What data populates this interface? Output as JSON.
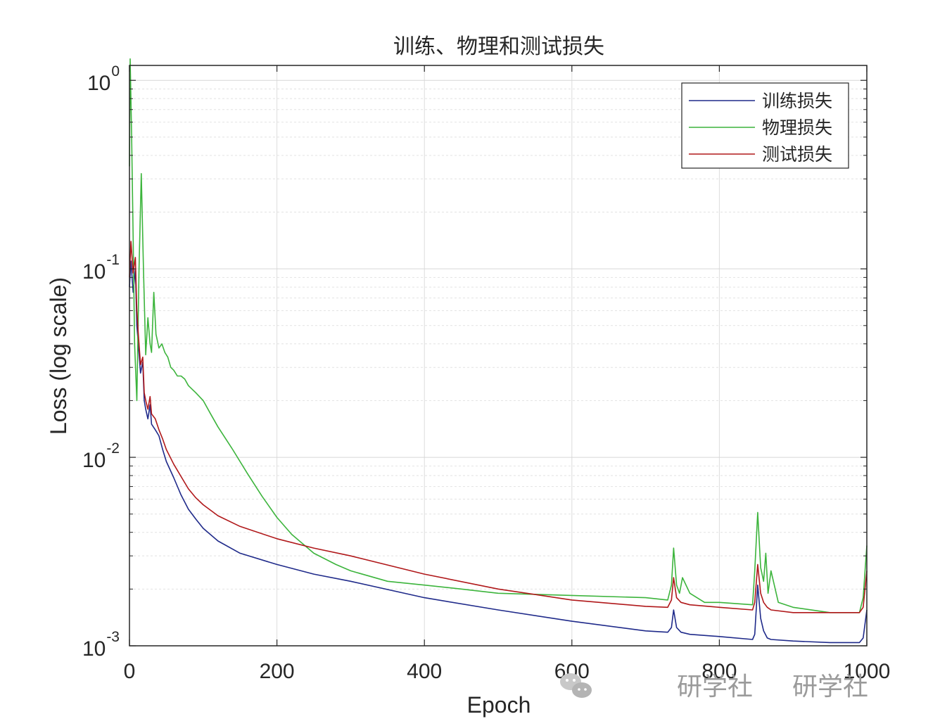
{
  "chart_data": {
    "type": "line",
    "title": "训练、物理和测试损失",
    "xlabel": "Epoch",
    "ylabel": "Loss (log scale)",
    "xlim": [
      0,
      1000
    ],
    "ylim": [
      0.001,
      1.2
    ],
    "yscale": "log",
    "grid": true,
    "minor_grid": true,
    "legend": "top-right",
    "xticks": [
      "0",
      "200",
      "400",
      "600",
      "800",
      "1000"
    ],
    "yticks": [
      {
        "base": "10",
        "exp": "0",
        "value": 1
      },
      {
        "base": "10",
        "exp": "-1",
        "value": 0.1
      },
      {
        "base": "10",
        "exp": "-2",
        "value": 0.01
      },
      {
        "base": "10",
        "exp": "-3",
        "value": 0.001
      }
    ],
    "series": [
      {
        "name": "训练损失",
        "color": "#1f2a8a",
        "x": [
          0,
          2,
          5,
          8,
          10,
          12,
          15,
          18,
          20,
          22,
          25,
          28,
          30,
          35,
          40,
          45,
          50,
          60,
          70,
          80,
          90,
          100,
          120,
          150,
          200,
          250,
          300,
          400,
          500,
          600,
          700,
          730,
          735,
          738,
          742,
          748,
          760,
          800,
          845,
          848,
          852,
          856,
          860,
          865,
          870,
          900,
          950,
          990,
          995,
          1000
        ],
        "y": [
          0.08,
          0.11,
          0.075,
          0.1,
          0.05,
          0.04,
          0.028,
          0.032,
          0.02,
          0.018,
          0.016,
          0.019,
          0.015,
          0.014,
          0.013,
          0.011,
          0.0095,
          0.0078,
          0.0063,
          0.0053,
          0.0047,
          0.0042,
          0.0036,
          0.0031,
          0.0027,
          0.0024,
          0.0022,
          0.0018,
          0.00155,
          0.00135,
          0.0012,
          0.00118,
          0.00125,
          0.00155,
          0.00125,
          0.00118,
          0.00115,
          0.00112,
          0.00108,
          0.00115,
          0.0021,
          0.0014,
          0.0012,
          0.0011,
          0.00108,
          0.00106,
          0.00104,
          0.00104,
          0.0011,
          0.00155
        ]
      },
      {
        "name": "物理损失",
        "color": "#3cb43c",
        "x": [
          0,
          1,
          3,
          5,
          7,
          10,
          13,
          16,
          19,
          22,
          25,
          28,
          30,
          33,
          36,
          40,
          44,
          48,
          52,
          56,
          60,
          65,
          70,
          75,
          80,
          90,
          100,
          110,
          120,
          140,
          160,
          180,
          200,
          220,
          250,
          280,
          300,
          350,
          400,
          450,
          500,
          600,
          700,
          730,
          735,
          738,
          742,
          746,
          750,
          760,
          780,
          800,
          845,
          848,
          852,
          856,
          860,
          863,
          866,
          870,
          880,
          900,
          950,
          990,
          995,
          1000
        ],
        "y": [
          0.35,
          1.3,
          0.5,
          0.15,
          0.04,
          0.02,
          0.1,
          0.32,
          0.1,
          0.035,
          0.055,
          0.04,
          0.036,
          0.075,
          0.045,
          0.038,
          0.04,
          0.036,
          0.034,
          0.03,
          0.029,
          0.027,
          0.027,
          0.026,
          0.024,
          0.022,
          0.02,
          0.017,
          0.0145,
          0.011,
          0.0082,
          0.0062,
          0.0048,
          0.0039,
          0.0031,
          0.0027,
          0.0025,
          0.0022,
          0.0021,
          0.002,
          0.0019,
          0.00185,
          0.0018,
          0.00175,
          0.0021,
          0.0033,
          0.0021,
          0.0019,
          0.0023,
          0.0019,
          0.0017,
          0.0017,
          0.00165,
          0.0025,
          0.0051,
          0.0026,
          0.0022,
          0.0031,
          0.0019,
          0.0025,
          0.0017,
          0.0016,
          0.0015,
          0.0015,
          0.0018,
          0.0034
        ]
      },
      {
        "name": "测试损失",
        "color": "#b0181a",
        "x": [
          0,
          2,
          5,
          8,
          10,
          12,
          15,
          18,
          20,
          22,
          25,
          28,
          30,
          35,
          40,
          45,
          50,
          60,
          70,
          80,
          90,
          100,
          120,
          150,
          200,
          250,
          300,
          400,
          500,
          600,
          700,
          730,
          735,
          738,
          742,
          748,
          760,
          800,
          845,
          848,
          852,
          856,
          860,
          865,
          870,
          900,
          950,
          990,
          995,
          1000
        ],
        "y": [
          0.09,
          0.14,
          0.095,
          0.115,
          0.06,
          0.045,
          0.031,
          0.034,
          0.022,
          0.02,
          0.018,
          0.021,
          0.017,
          0.016,
          0.014,
          0.0125,
          0.011,
          0.0092,
          0.0079,
          0.0068,
          0.0061,
          0.0056,
          0.0049,
          0.0043,
          0.0037,
          0.0033,
          0.003,
          0.0024,
          0.002,
          0.00175,
          0.00162,
          0.0016,
          0.00175,
          0.0023,
          0.0018,
          0.0017,
          0.00165,
          0.0016,
          0.00155,
          0.0017,
          0.0027,
          0.0019,
          0.0017,
          0.0016,
          0.00155,
          0.0015,
          0.0015,
          0.0015,
          0.0016,
          0.0025
        ]
      }
    ]
  },
  "watermark": {
    "left_text": "研学社",
    "right_text": "研学社"
  }
}
